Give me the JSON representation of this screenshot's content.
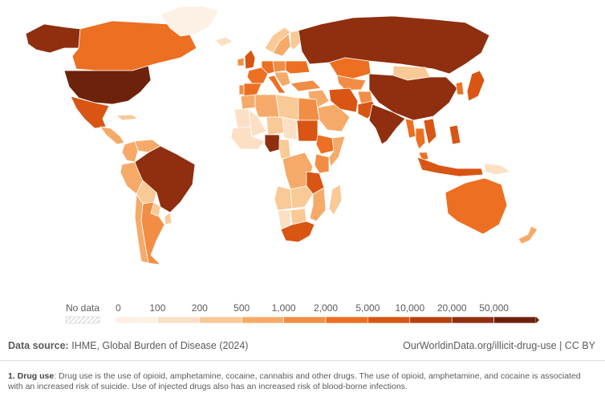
{
  "legend": {
    "no_data_label": "No data",
    "thresholds": [
      "0",
      "100",
      "200",
      "500",
      "1,000",
      "2,000",
      "5,000",
      "10,000",
      "20,000",
      "50,000"
    ],
    "colors": [
      "#fdf0e4",
      "#fbe0c4",
      "#f9c996",
      "#f6aa69",
      "#f28d45",
      "#ec6f22",
      "#d85513",
      "#b4400f",
      "#8f2f0f",
      "#6d220c"
    ],
    "no_data_color": "#e6e6e6"
  },
  "source": {
    "label": "Data source:",
    "text": "IHME, Global Burden of Disease (2024)"
  },
  "credit": "OurWorldinData.org/illicit-drug-use | CC BY",
  "footnote": {
    "label": "1. Drug use",
    "text": ": Drug use is the use of opioid, amphetamine, cocaine, cannabis and other drugs. The use of opioid, amphetamine, and cocaine is associated with an increased risk of suicide. Use of injected drugs also has an increased risk of blood-borne infections."
  },
  "map": {
    "regions": [
      {
        "name": "Alaska",
        "bin": 8
      },
      {
        "name": "Canada",
        "bin": 5
      },
      {
        "name": "Greenland",
        "bin": 0
      },
      {
        "name": "United States",
        "bin": 9
      },
      {
        "name": "Mexico",
        "bin": 6
      },
      {
        "name": "Central America",
        "bin": 3
      },
      {
        "name": "Cuba",
        "bin": 2
      },
      {
        "name": "Colombia",
        "bin": 3
      },
      {
        "name": "Venezuela",
        "bin": 3
      },
      {
        "name": "Peru",
        "bin": 3
      },
      {
        "name": "Brazil",
        "bin": 8
      },
      {
        "name": "Bolivia",
        "bin": 2
      },
      {
        "name": "Paraguay",
        "bin": 2
      },
      {
        "name": "Argentina",
        "bin": 4
      },
      {
        "name": "Chile",
        "bin": 3
      },
      {
        "name": "Uruguay",
        "bin": 2
      },
      {
        "name": "Iceland",
        "bin": 1
      },
      {
        "name": "Norway",
        "bin": 2
      },
      {
        "name": "Sweden",
        "bin": 3
      },
      {
        "name": "Finland",
        "bin": 2
      },
      {
        "name": "United Kingdom",
        "bin": 6
      },
      {
        "name": "Ireland",
        "bin": 4
      },
      {
        "name": "France",
        "bin": 5
      },
      {
        "name": "Spain",
        "bin": 5
      },
      {
        "name": "Portugal",
        "bin": 4
      },
      {
        "name": "Germany",
        "bin": 5
      },
      {
        "name": "Italy",
        "bin": 5
      },
      {
        "name": "Poland",
        "bin": 4
      },
      {
        "name": "Ukraine",
        "bin": 5
      },
      {
        "name": "Balkans",
        "bin": 3
      },
      {
        "name": "Turkey",
        "bin": 4
      },
      {
        "name": "Russia",
        "bin": 8
      },
      {
        "name": "Kazakhstan",
        "bin": 5
      },
      {
        "name": "Central Asia",
        "bin": 4
      },
      {
        "name": "Mongolia",
        "bin": 2
      },
      {
        "name": "China",
        "bin": 8
      },
      {
        "name": "Korea",
        "bin": 5
      },
      {
        "name": "Japan",
        "bin": 6
      },
      {
        "name": "Middle East",
        "bin": 3
      },
      {
        "name": "Saudi Arabia",
        "bin": 3
      },
      {
        "name": "Iran",
        "bin": 6
      },
      {
        "name": "Afghanistan",
        "bin": 4
      },
      {
        "name": "Pakistan",
        "bin": 6
      },
      {
        "name": "India",
        "bin": 8
      },
      {
        "name": "Myanmar",
        "bin": 5
      },
      {
        "name": "Thailand",
        "bin": 5
      },
      {
        "name": "Vietnam",
        "bin": 6
      },
      {
        "name": "Philippines",
        "bin": 6
      },
      {
        "name": "Indonesia",
        "bin": 6
      },
      {
        "name": "Malaysia",
        "bin": 5
      },
      {
        "name": "Papua New Guinea",
        "bin": 1
      },
      {
        "name": "Australia",
        "bin": 5
      },
      {
        "name": "New Zealand",
        "bin": 3
      },
      {
        "name": "Morocco",
        "bin": 3
      },
      {
        "name": "Algeria",
        "bin": 3
      },
      {
        "name": "Libya",
        "bin": 2
      },
      {
        "name": "Egypt",
        "bin": 4
      },
      {
        "name": "Mauritania",
        "bin": 1
      },
      {
        "name": "Mali",
        "bin": 1
      },
      {
        "name": "Niger",
        "bin": 2
      },
      {
        "name": "Chad",
        "bin": 1
      },
      {
        "name": "Sudan",
        "bin": 6
      },
      {
        "name": "Ethiopia",
        "bin": 5
      },
      {
        "name": "Somalia",
        "bin": 3
      },
      {
        "name": "West Africa",
        "bin": 1
      },
      {
        "name": "Nigeria",
        "bin": 8
      },
      {
        "name": "Cameroon",
        "bin": 2
      },
      {
        "name": "DR Congo",
        "bin": 3
      },
      {
        "name": "Kenya",
        "bin": 4
      },
      {
        "name": "Tanzania",
        "bin": 6
      },
      {
        "name": "Angola",
        "bin": 2
      },
      {
        "name": "Zambia",
        "bin": 2
      },
      {
        "name": "Mozambique",
        "bin": 3
      },
      {
        "name": "Namibia",
        "bin": 1
      },
      {
        "name": "Botswana",
        "bin": 2
      },
      {
        "name": "South Africa",
        "bin": 6
      },
      {
        "name": "Madagascar",
        "bin": 2
      }
    ]
  }
}
